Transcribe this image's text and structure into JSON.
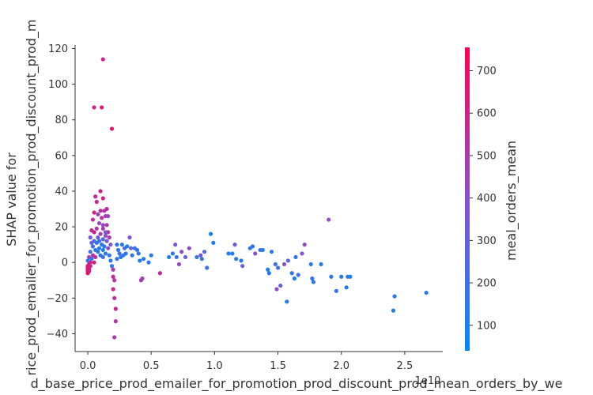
{
  "chart_data": {
    "type": "scatter",
    "title": "",
    "xlabel": "d_base_price_prod_emailer_for_promotion_prod_discount_prod_mean_orders_by_we",
    "ylabel": "SHAP value for\nrice_prod_emailer_for_promotion_prod_discount_prod_m",
    "x_offset_text": "1e10",
    "xlim": [
      -0.1,
      2.8
    ],
    "ylim": [
      -50,
      122
    ],
    "x_ticks": [
      0.0,
      0.5,
      1.0,
      1.5,
      2.0,
      2.5
    ],
    "x_tick_labels": [
      "0.0",
      "0.5",
      "1.0",
      "1.5",
      "2.0",
      "2.5"
    ],
    "y_ticks": [
      -40,
      -20,
      0,
      20,
      40,
      60,
      80,
      100,
      120
    ],
    "y_tick_labels": [
      "−40",
      "−20",
      "0",
      "20",
      "40",
      "60",
      "80",
      "100",
      "120"
    ],
    "colorbar": {
      "label": "meal_orders_mean",
      "range": [
        40,
        755
      ],
      "ticks": [
        100,
        200,
        300,
        400,
        500,
        600,
        700
      ],
      "tick_labels": [
        "100",
        "200",
        "300",
        "400",
        "500",
        "600",
        "700"
      ],
      "colors": [
        "#008afb",
        "#8b4fd1",
        "#ff0052"
      ]
    },
    "points": [
      [
        0.12,
        114,
        620
      ],
      [
        0.05,
        87,
        600
      ],
      [
        0.11,
        87,
        640
      ],
      [
        0.19,
        75,
        660
      ],
      [
        0.1,
        40,
        600
      ],
      [
        0.06,
        37,
        560
      ],
      [
        0.12,
        36,
        620
      ],
      [
        0.07,
        34,
        580
      ],
      [
        0.1,
        29,
        540
      ],
      [
        0.13,
        29,
        520
      ],
      [
        0.15,
        30,
        560
      ],
      [
        0.05,
        28,
        600
      ],
      [
        0.08,
        27,
        500
      ],
      [
        0.14,
        26,
        480
      ],
      [
        0.11,
        25,
        540
      ],
      [
        0.04,
        24,
        560
      ],
      [
        0.09,
        22,
        440
      ],
      [
        0.12,
        21,
        420
      ],
      [
        0.15,
        21,
        500
      ],
      [
        0.07,
        19,
        520
      ],
      [
        0.03,
        18,
        580
      ],
      [
        0.05,
        17,
        600
      ],
      [
        0.16,
        17,
        520
      ],
      [
        0.1,
        16,
        460
      ],
      [
        0.14,
        15,
        420
      ],
      [
        0.02,
        14,
        320
      ],
      [
        0.08,
        14,
        300
      ],
      [
        0.17,
        14,
        480
      ],
      [
        0.12,
        13,
        260
      ],
      [
        0.05,
        12,
        240
      ],
      [
        0.09,
        12,
        200
      ],
      [
        0.15,
        12,
        340
      ],
      [
        0.03,
        11,
        280
      ],
      [
        0.07,
        11,
        160
      ],
      [
        0.11,
        10,
        180
      ],
      [
        0.18,
        10,
        360
      ],
      [
        0.13,
        9,
        140
      ],
      [
        0.04,
        9,
        220
      ],
      [
        0.09,
        8,
        120
      ],
      [
        0.16,
        8,
        400
      ],
      [
        0.06,
        7,
        130
      ],
      [
        0.12,
        7,
        110
      ],
      [
        0.02,
        6,
        200
      ],
      [
        0.08,
        6,
        140
      ],
      [
        0.14,
        5,
        150
      ],
      [
        0.04,
        4,
        520
      ],
      [
        0.1,
        4,
        160
      ],
      [
        0.17,
        4,
        180
      ],
      [
        0.01,
        3,
        480
      ],
      [
        0.06,
        3,
        540
      ],
      [
        0.12,
        3,
        200
      ],
      [
        0.03,
        2,
        170
      ],
      [
        0.0,
        1,
        150
      ],
      [
        0.02,
        0,
        600
      ],
      [
        0.05,
        0,
        620
      ],
      [
        0.01,
        -1,
        580
      ],
      [
        0.0,
        -2,
        640
      ],
      [
        0.02,
        -2,
        600
      ],
      [
        0.0,
        -3,
        660
      ],
      [
        0.01,
        -3,
        620
      ],
      [
        0.0,
        -4,
        700
      ],
      [
        0.01,
        -4,
        640
      ],
      [
        0.0,
        -5,
        680
      ],
      [
        0.0,
        -6,
        720
      ],
      [
        0.01,
        -5,
        600
      ],
      [
        0.18,
        1,
        140
      ],
      [
        0.19,
        -2,
        160
      ],
      [
        0.2,
        -4,
        500
      ],
      [
        0.2,
        -8,
        560
      ],
      [
        0.21,
        -10,
        520
      ],
      [
        0.2,
        -15,
        600
      ],
      [
        0.21,
        -20,
        540
      ],
      [
        0.22,
        -26,
        580
      ],
      [
        0.22,
        -33,
        520
      ],
      [
        0.21,
        -42,
        500
      ],
      [
        0.14,
        17,
        380
      ],
      [
        0.16,
        26,
        460
      ],
      [
        0.12,
        19,
        500
      ],
      [
        0.23,
        10,
        180
      ],
      [
        0.24,
        7,
        160
      ],
      [
        0.25,
        5,
        200
      ],
      [
        0.26,
        3,
        140
      ],
      [
        0.23,
        2,
        180
      ],
      [
        0.27,
        10,
        140
      ],
      [
        0.28,
        4,
        160
      ],
      [
        0.29,
        8,
        220
      ],
      [
        0.3,
        5,
        150
      ],
      [
        0.31,
        9,
        120
      ],
      [
        0.33,
        14,
        380
      ],
      [
        0.34,
        8,
        300
      ],
      [
        0.35,
        4,
        160
      ],
      [
        0.37,
        8,
        140
      ],
      [
        0.39,
        7,
        200
      ],
      [
        0.4,
        5,
        160
      ],
      [
        0.41,
        1,
        120
      ],
      [
        0.42,
        -10,
        480
      ],
      [
        0.43,
        -9,
        480
      ],
      [
        0.44,
        2,
        140
      ],
      [
        0.48,
        0,
        150
      ],
      [
        0.5,
        4,
        140
      ],
      [
        0.57,
        -6,
        560
      ],
      [
        0.64,
        3,
        130
      ],
      [
        0.67,
        5,
        140
      ],
      [
        0.69,
        10,
        360
      ],
      [
        0.7,
        3,
        200
      ],
      [
        0.72,
        -1,
        440
      ],
      [
        0.74,
        6,
        380
      ],
      [
        0.77,
        3,
        300
      ],
      [
        0.8,
        8,
        420
      ],
      [
        0.86,
        3,
        180
      ],
      [
        0.89,
        4,
        320
      ],
      [
        0.9,
        2,
        200
      ],
      [
        0.92,
        6,
        240
      ],
      [
        0.94,
        -3,
        180
      ],
      [
        0.97,
        16,
        120
      ],
      [
        0.99,
        11,
        140
      ],
      [
        1.11,
        5,
        130
      ],
      [
        1.14,
        5,
        120
      ],
      [
        1.16,
        10,
        340
      ],
      [
        1.17,
        2,
        160
      ],
      [
        1.21,
        1,
        140
      ],
      [
        1.22,
        -2,
        300
      ],
      [
        1.28,
        8,
        150
      ],
      [
        1.3,
        9,
        140
      ],
      [
        1.32,
        5,
        400
      ],
      [
        1.36,
        7,
        160
      ],
      [
        1.38,
        7,
        140
      ],
      [
        1.42,
        -4,
        120
      ],
      [
        1.43,
        -6,
        130
      ],
      [
        1.45,
        6,
        140
      ],
      [
        1.48,
        -1,
        180
      ],
      [
        1.49,
        -15,
        420
      ],
      [
        1.5,
        -3,
        200
      ],
      [
        1.52,
        -13,
        300
      ],
      [
        1.55,
        -1,
        380
      ],
      [
        1.57,
        -22,
        150
      ],
      [
        1.58,
        1,
        260
      ],
      [
        1.61,
        -6,
        160
      ],
      [
        1.63,
        -9,
        140
      ],
      [
        1.64,
        3,
        180
      ],
      [
        1.66,
        -7,
        200
      ],
      [
        1.69,
        5,
        380
      ],
      [
        1.71,
        10,
        420
      ],
      [
        1.76,
        -1,
        140
      ],
      [
        1.77,
        -9,
        150
      ],
      [
        1.78,
        -11,
        160
      ],
      [
        1.84,
        -1,
        130
      ],
      [
        1.9,
        24,
        400
      ],
      [
        1.92,
        -8,
        160
      ],
      [
        1.96,
        -16,
        150
      ],
      [
        2.0,
        -8,
        140
      ],
      [
        2.04,
        -14,
        130
      ],
      [
        2.05,
        -8,
        140
      ],
      [
        2.07,
        -8,
        120
      ],
      [
        2.41,
        -27,
        130
      ],
      [
        2.42,
        -19,
        140
      ],
      [
        2.67,
        -17,
        150
      ]
    ]
  }
}
